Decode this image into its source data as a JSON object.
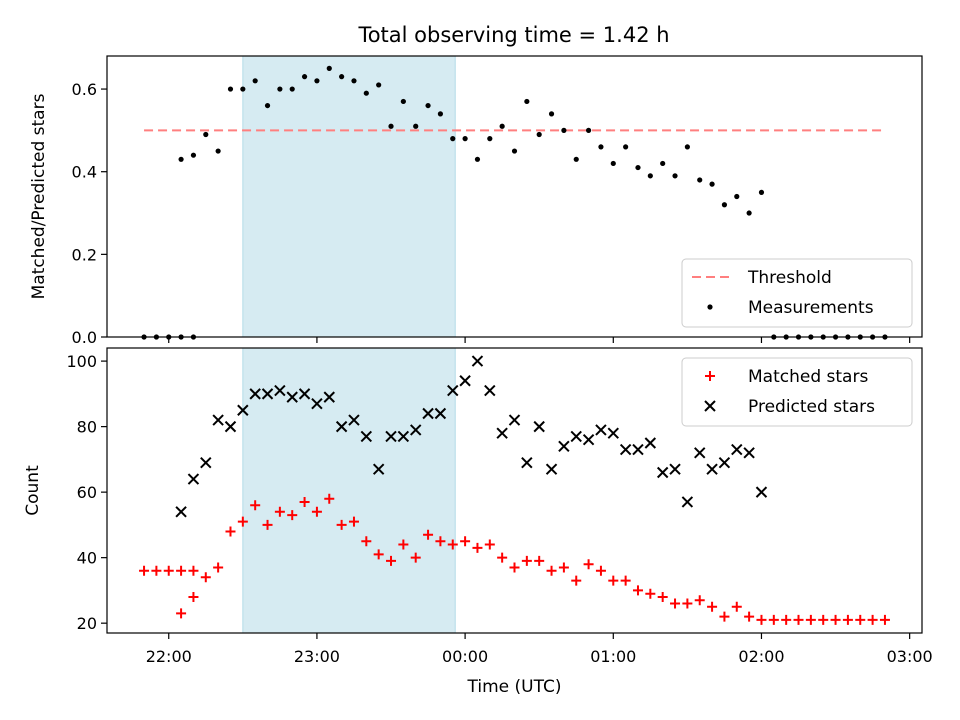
{
  "title": "Total observing time = 1.42 h",
  "colors": {
    "highlight": "#add8e6",
    "threshold": "#ff7f7f",
    "measurement": "#000000",
    "matched": "#ff0000",
    "predicted": "#000000"
  },
  "chart_data": [
    {
      "type": "scatter",
      "ylabel": "Matched/Predicted stars",
      "xlim": [
        "21:35",
        "03:05"
      ],
      "ylim": [
        0,
        0.68
      ],
      "yticks": [
        0.0,
        0.2,
        0.4,
        0.6
      ],
      "ytick_labels": [
        "0.0",
        "0.2",
        "0.4",
        "0.6"
      ],
      "highlight_span": [
        "22:30",
        "23:56"
      ],
      "legend": {
        "position": "lower-right",
        "entries": [
          "Threshold",
          "Measurements"
        ]
      },
      "threshold": {
        "name": "Threshold",
        "value": 0.5,
        "x_range": [
          "21:50",
          "02:50"
        ]
      },
      "series": [
        {
          "name": "Measurements",
          "marker": "dot",
          "points": [
            [
              "21:50",
              0
            ],
            [
              "21:55",
              0
            ],
            [
              "22:00",
              0
            ],
            [
              "22:05",
              0
            ],
            [
              "22:10",
              0
            ],
            [
              "22:05",
              0.43
            ],
            [
              "22:10",
              0.44
            ],
            [
              "22:15",
              0.49
            ],
            [
              "22:20",
              0.45
            ],
            [
              "22:25",
              0.6
            ],
            [
              "22:30",
              0.6
            ],
            [
              "22:35",
              0.62
            ],
            [
              "22:40",
              0.56
            ],
            [
              "22:45",
              0.6
            ],
            [
              "22:50",
              0.6
            ],
            [
              "22:55",
              0.63
            ],
            [
              "23:00",
              0.62
            ],
            [
              "23:05",
              0.65
            ],
            [
              "23:10",
              0.63
            ],
            [
              "23:15",
              0.62
            ],
            [
              "23:20",
              0.59
            ],
            [
              "23:25",
              0.61
            ],
            [
              "23:30",
              0.51
            ],
            [
              "23:35",
              0.57
            ],
            [
              "23:40",
              0.51
            ],
            [
              "23:45",
              0.56
            ],
            [
              "23:50",
              0.54
            ],
            [
              "23:55",
              0.48
            ],
            [
              "00:00",
              0.48
            ],
            [
              "00:05",
              0.43
            ],
            [
              "00:10",
              0.48
            ],
            [
              "00:15",
              0.51
            ],
            [
              "00:20",
              0.45
            ],
            [
              "00:25",
              0.57
            ],
            [
              "00:30",
              0.49
            ],
            [
              "00:35",
              0.54
            ],
            [
              "00:40",
              0.5
            ],
            [
              "00:45",
              0.43
            ],
            [
              "00:50",
              0.5
            ],
            [
              "00:55",
              0.46
            ],
            [
              "01:00",
              0.42
            ],
            [
              "01:05",
              0.46
            ],
            [
              "01:10",
              0.41
            ],
            [
              "01:15",
              0.39
            ],
            [
              "01:20",
              0.42
            ],
            [
              "01:25",
              0.39
            ],
            [
              "01:30",
              0.46
            ],
            [
              "01:35",
              0.38
            ],
            [
              "01:40",
              0.37
            ],
            [
              "01:45",
              0.32
            ],
            [
              "01:50",
              0.34
            ],
            [
              "01:55",
              0.3
            ],
            [
              "02:00",
              0.35
            ],
            [
              "02:05",
              0
            ],
            [
              "02:10",
              0
            ],
            [
              "02:15",
              0
            ],
            [
              "02:20",
              0
            ],
            [
              "02:25",
              0
            ],
            [
              "02:30",
              0
            ],
            [
              "02:35",
              0
            ],
            [
              "02:40",
              0
            ],
            [
              "02:45",
              0
            ],
            [
              "02:50",
              0
            ]
          ]
        }
      ]
    },
    {
      "type": "scatter",
      "ylabel": "Count",
      "xlabel": "Time (UTC)",
      "xlim": [
        "21:35",
        "03:05"
      ],
      "xticks": [
        "22:00",
        "23:00",
        "00:00",
        "01:00",
        "02:00",
        "03:00"
      ],
      "ylim": [
        17,
        104
      ],
      "yticks": [
        20,
        40,
        60,
        80,
        100
      ],
      "ytick_labels": [
        "20",
        "40",
        "60",
        "80",
        "100"
      ],
      "highlight_span": [
        "22:30",
        "23:56"
      ],
      "legend": {
        "position": "upper-right",
        "entries": [
          "Matched stars",
          "Predicted stars"
        ]
      },
      "series": [
        {
          "name": "Matched stars",
          "marker": "plus",
          "points": [
            [
              "21:50",
              36
            ],
            [
              "21:55",
              36
            ],
            [
              "22:00",
              36
            ],
            [
              "22:05",
              36
            ],
            [
              "22:10",
              36
            ],
            [
              "22:05",
              23
            ],
            [
              "22:10",
              28
            ],
            [
              "22:15",
              34
            ],
            [
              "22:20",
              37
            ],
            [
              "22:25",
              48
            ],
            [
              "22:30",
              51
            ],
            [
              "22:35",
              56
            ],
            [
              "22:40",
              50
            ],
            [
              "22:45",
              54
            ],
            [
              "22:50",
              53
            ],
            [
              "22:55",
              57
            ],
            [
              "23:00",
              54
            ],
            [
              "23:05",
              58
            ],
            [
              "23:10",
              50
            ],
            [
              "23:15",
              51
            ],
            [
              "23:20",
              45
            ],
            [
              "23:25",
              41
            ],
            [
              "23:30",
              39
            ],
            [
              "23:35",
              44
            ],
            [
              "23:40",
              40
            ],
            [
              "23:45",
              47
            ],
            [
              "23:50",
              45
            ],
            [
              "23:55",
              44
            ],
            [
              "00:00",
              45
            ],
            [
              "00:05",
              43
            ],
            [
              "00:10",
              44
            ],
            [
              "00:15",
              40
            ],
            [
              "00:20",
              37
            ],
            [
              "00:25",
              39
            ],
            [
              "00:30",
              39
            ],
            [
              "00:35",
              36
            ],
            [
              "00:40",
              37
            ],
            [
              "00:45",
              33
            ],
            [
              "00:50",
              38
            ],
            [
              "00:55",
              36
            ],
            [
              "01:00",
              33
            ],
            [
              "01:05",
              33
            ],
            [
              "01:10",
              30
            ],
            [
              "01:15",
              29
            ],
            [
              "01:20",
              28
            ],
            [
              "01:25",
              26
            ],
            [
              "01:30",
              26
            ],
            [
              "01:35",
              27
            ],
            [
              "01:40",
              25
            ],
            [
              "01:45",
              22
            ],
            [
              "01:50",
              25
            ],
            [
              "01:55",
              22
            ],
            [
              "02:00",
              21
            ],
            [
              "02:05",
              21
            ],
            [
              "02:10",
              21
            ],
            [
              "02:15",
              21
            ],
            [
              "02:20",
              21
            ],
            [
              "02:25",
              21
            ],
            [
              "02:30",
              21
            ],
            [
              "02:35",
              21
            ],
            [
              "02:40",
              21
            ],
            [
              "02:45",
              21
            ],
            [
              "02:50",
              21
            ]
          ]
        },
        {
          "name": "Predicted stars",
          "marker": "x",
          "points": [
            [
              "22:05",
              54
            ],
            [
              "22:10",
              64
            ],
            [
              "22:15",
              69
            ],
            [
              "22:20",
              82
            ],
            [
              "22:25",
              80
            ],
            [
              "22:30",
              85
            ],
            [
              "22:35",
              90
            ],
            [
              "22:40",
              90
            ],
            [
              "22:45",
              91
            ],
            [
              "22:50",
              89
            ],
            [
              "22:55",
              90
            ],
            [
              "23:00",
              87
            ],
            [
              "23:05",
              89
            ],
            [
              "23:10",
              80
            ],
            [
              "23:15",
              82
            ],
            [
              "23:20",
              77
            ],
            [
              "23:25",
              67
            ],
            [
              "23:30",
              77
            ],
            [
              "23:35",
              77
            ],
            [
              "23:40",
              79
            ],
            [
              "23:45",
              84
            ],
            [
              "23:50",
              84
            ],
            [
              "23:55",
              91
            ],
            [
              "00:00",
              94
            ],
            [
              "00:05",
              100
            ],
            [
              "00:10",
              91
            ],
            [
              "00:15",
              78
            ],
            [
              "00:20",
              82
            ],
            [
              "00:25",
              69
            ],
            [
              "00:30",
              80
            ],
            [
              "00:35",
              67
            ],
            [
              "00:40",
              74
            ],
            [
              "00:45",
              77
            ],
            [
              "00:50",
              76
            ],
            [
              "00:55",
              79
            ],
            [
              "01:00",
              78
            ],
            [
              "01:05",
              73
            ],
            [
              "01:10",
              73
            ],
            [
              "01:15",
              75
            ],
            [
              "01:20",
              66
            ],
            [
              "01:25",
              67
            ],
            [
              "01:30",
              57
            ],
            [
              "01:35",
              72
            ],
            [
              "01:40",
              67
            ],
            [
              "01:45",
              69
            ],
            [
              "01:50",
              73
            ],
            [
              "01:55",
              72
            ],
            [
              "02:00",
              60
            ]
          ]
        }
      ]
    }
  ]
}
